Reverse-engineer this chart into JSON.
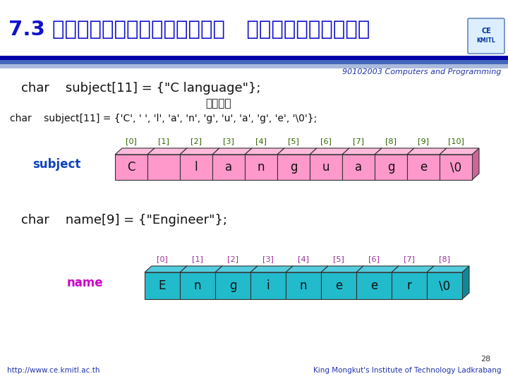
{
  "title": "7.3 ตัวแปรแถวลำดับ   และข้อความ",
  "subtitle": "90102003 Computers and Programming",
  "line1": "char    subject[11] = {\"C language\"};",
  "line2": "หรือ",
  "line3": "char    subject[11] = {'C', ' ', 'l', 'a', 'n', 'g', 'u', 'a', 'g', 'e', '\\0'};",
  "line4": "char    name[9] = {\"Engineer\"};",
  "subject_label": "subject",
  "name_label": "name",
  "subject_cells": [
    "C",
    " ",
    "l",
    "a",
    "n",
    "g",
    "u",
    "a",
    "g",
    "e",
    "\\0"
  ],
  "subject_indices": [
    "[0]",
    "[1]",
    "[2]",
    "[3]",
    "[4]",
    "[5]",
    "[6]",
    "[7]",
    "[8]",
    "[9]",
    "[10]"
  ],
  "name_cells": [
    "E",
    "n",
    "g",
    "i",
    "n",
    "e",
    "e",
    "r",
    "\\0"
  ],
  "name_indices": [
    "[0]",
    "[1]",
    "[2]",
    "[3]",
    "[4]",
    "[5]",
    "[6]",
    "[7]",
    "[8]"
  ],
  "bg_color": "#ffffff",
  "title_color": "#1111cc",
  "header_bar_color1": "#2233aa",
  "header_bar_color2": "#8899cc",
  "subtitle_color": "#2233aa",
  "code_color": "#111111",
  "or_color": "#111111",
  "subject_label_color": "#1144bb",
  "name_label_color": "#cc00cc",
  "index_color_subject": "#336600",
  "index_color_name": "#993399",
  "cell_face_color_subject": "#ff99cc",
  "cell_top_color_subject": "#ffbbdd",
  "cell_side_color_subject": "#cc6699",
  "cell_face_color_name": "#22bbcc",
  "cell_top_color_name": "#55ccdd",
  "cell_side_color_name": "#118899",
  "footer_color": "#2233aa",
  "page_num": "28",
  "line_bar_gradient": [
    "#0000aa",
    "#3366cc",
    "#aabbdd"
  ]
}
